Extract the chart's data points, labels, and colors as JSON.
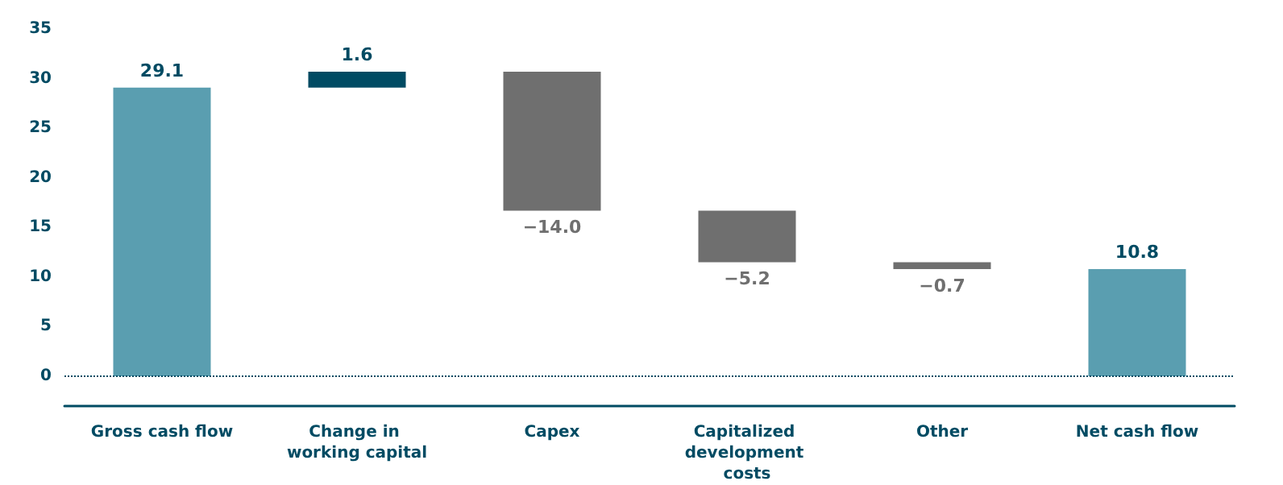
{
  "chart_data": {
    "type": "bar",
    "categories": [
      "Gross cash flow",
      "Change in working capital",
      "Capex",
      "Capitalized development costs",
      "Other",
      "Net cash flow"
    ],
    "values": [
      29.1,
      1.6,
      -14.0,
      -5.2,
      -0.7,
      10.8
    ],
    "base": [
      0,
      29.1,
      30.7,
      16.7,
      11.5,
      0
    ],
    "colors": [
      "#5a9eb0",
      "#004b63",
      "#6f6f6f",
      "#6f6f6f",
      "#6f6f6f",
      "#5a9eb0"
    ],
    "value_labels": [
      "29.1",
      "1.6",
      "−14.0",
      "−5.2",
      "−0.7",
      "10.8"
    ],
    "ylim": [
      -3,
      35
    ],
    "yticks": [
      0,
      5,
      10,
      15,
      20,
      25,
      30,
      35
    ],
    "ref_lines": [
      {
        "axis": "y",
        "value": 0,
        "line_style": "dotted",
        "color": "#004b63"
      }
    ],
    "grid": false
  }
}
